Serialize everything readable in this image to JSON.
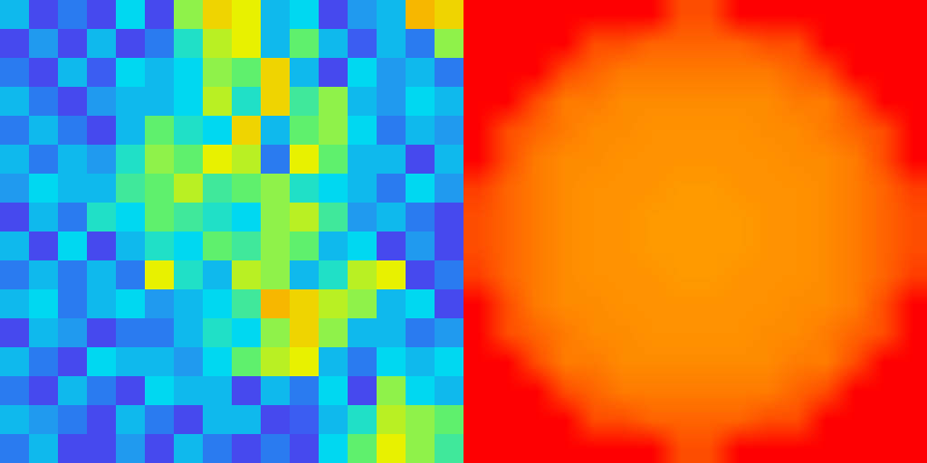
{
  "chart_data": [
    {
      "type": "heatmap",
      "tick_labels": false,
      "zlim": [
        0,
        1
      ],
      "z": [
        [
          0.3,
          0.1,
          0.2,
          0.1,
          0.35,
          0.1,
          0.55,
          0.7,
          0.65,
          0.3,
          0.35,
          0.1,
          0.25,
          0.3,
          0.75,
          0.7
        ],
        [
          0.1,
          0.25,
          0.1,
          0.3,
          0.1,
          0.2,
          0.4,
          0.6,
          0.65,
          0.3,
          0.5,
          0.3,
          0.15,
          0.3,
          0.2,
          0.55
        ],
        [
          0.2,
          0.1,
          0.3,
          0.15,
          0.35,
          0.3,
          0.35,
          0.55,
          0.5,
          0.7,
          0.3,
          0.1,
          0.35,
          0.25,
          0.3,
          0.2
        ],
        [
          0.3,
          0.2,
          0.1,
          0.25,
          0.3,
          0.3,
          0.35,
          0.6,
          0.4,
          0.7,
          0.45,
          0.55,
          0.3,
          0.25,
          0.35,
          0.3
        ],
        [
          0.2,
          0.3,
          0.2,
          0.1,
          0.3,
          0.5,
          0.4,
          0.35,
          0.7,
          0.3,
          0.5,
          0.55,
          0.35,
          0.2,
          0.3,
          0.25
        ],
        [
          0.3,
          0.2,
          0.3,
          0.25,
          0.4,
          0.55,
          0.5,
          0.65,
          0.6,
          0.2,
          0.65,
          0.5,
          0.3,
          0.3,
          0.1,
          0.3
        ],
        [
          0.25,
          0.35,
          0.3,
          0.3,
          0.45,
          0.5,
          0.6,
          0.45,
          0.5,
          0.55,
          0.4,
          0.35,
          0.3,
          0.2,
          0.35,
          0.25
        ],
        [
          0.1,
          0.3,
          0.2,
          0.4,
          0.35,
          0.5,
          0.45,
          0.4,
          0.35,
          0.55,
          0.6,
          0.45,
          0.25,
          0.3,
          0.2,
          0.1
        ],
        [
          0.3,
          0.1,
          0.35,
          0.1,
          0.3,
          0.4,
          0.35,
          0.5,
          0.45,
          0.55,
          0.5,
          0.3,
          0.35,
          0.1,
          0.25,
          0.1
        ],
        [
          0.2,
          0.3,
          0.2,
          0.3,
          0.2,
          0.65,
          0.4,
          0.3,
          0.6,
          0.55,
          0.3,
          0.4,
          0.6,
          0.65,
          0.1,
          0.2
        ],
        [
          0.3,
          0.35,
          0.2,
          0.3,
          0.35,
          0.25,
          0.3,
          0.35,
          0.45,
          0.75,
          0.7,
          0.6,
          0.55,
          0.3,
          0.35,
          0.1
        ],
        [
          0.1,
          0.3,
          0.25,
          0.1,
          0.2,
          0.2,
          0.3,
          0.4,
          0.35,
          0.55,
          0.7,
          0.55,
          0.3,
          0.3,
          0.2,
          0.25
        ],
        [
          0.3,
          0.2,
          0.1,
          0.35,
          0.3,
          0.3,
          0.25,
          0.35,
          0.5,
          0.6,
          0.65,
          0.3,
          0.2,
          0.35,
          0.3,
          0.35
        ],
        [
          0.2,
          0.1,
          0.3,
          0.2,
          0.1,
          0.35,
          0.3,
          0.3,
          0.1,
          0.3,
          0.2,
          0.35,
          0.1,
          0.55,
          0.35,
          0.3
        ],
        [
          0.3,
          0.25,
          0.2,
          0.1,
          0.3,
          0.2,
          0.1,
          0.3,
          0.3,
          0.1,
          0.15,
          0.3,
          0.4,
          0.6,
          0.55,
          0.5
        ],
        [
          0.2,
          0.3,
          0.1,
          0.1,
          0.25,
          0.1,
          0.3,
          0.2,
          0.1,
          0.2,
          0.1,
          0.35,
          0.5,
          0.65,
          0.55,
          0.45
        ]
      ]
    },
    {
      "type": "heatmap",
      "tick_labels": false,
      "zlim": [
        0,
        1
      ],
      "z": [
        [
          1,
          1,
          1,
          1,
          1,
          1,
          1,
          0.9,
          0.9,
          1,
          1,
          1,
          1,
          1,
          1,
          1
        ],
        [
          1,
          1,
          1,
          1,
          0.9,
          0.9,
          0.87,
          0.87,
          0.87,
          0.87,
          0.9,
          0.9,
          1,
          1,
          1,
          1
        ],
        [
          1,
          1,
          1,
          0.9,
          0.87,
          0.84,
          0.84,
          0.84,
          0.84,
          0.84,
          0.84,
          0.87,
          0.9,
          1,
          1,
          1
        ],
        [
          1,
          1,
          0.9,
          0.84,
          0.84,
          0.82,
          0.82,
          0.82,
          0.82,
          0.82,
          0.82,
          0.84,
          0.84,
          0.9,
          1,
          1
        ],
        [
          1,
          0.9,
          0.87,
          0.84,
          0.82,
          0.82,
          0.81,
          0.81,
          0.81,
          0.81,
          0.82,
          0.82,
          0.84,
          0.87,
          0.9,
          1
        ],
        [
          1,
          0.9,
          0.84,
          0.82,
          0.82,
          0.81,
          0.81,
          0.81,
          0.81,
          0.81,
          0.81,
          0.82,
          0.82,
          0.84,
          0.9,
          1
        ],
        [
          0.92,
          0.87,
          0.84,
          0.82,
          0.81,
          0.81,
          0.81,
          0.8,
          0.8,
          0.81,
          0.81,
          0.81,
          0.82,
          0.84,
          0.87,
          0.92
        ],
        [
          0.9,
          0.87,
          0.84,
          0.82,
          0.81,
          0.81,
          0.8,
          0.8,
          0.8,
          0.8,
          0.81,
          0.81,
          0.82,
          0.84,
          0.87,
          0.9
        ],
        [
          0.9,
          0.87,
          0.84,
          0.82,
          0.81,
          0.81,
          0.8,
          0.8,
          0.8,
          0.8,
          0.81,
          0.81,
          0.82,
          0.84,
          0.87,
          0.9
        ],
        [
          0.92,
          0.87,
          0.84,
          0.82,
          0.81,
          0.81,
          0.81,
          0.8,
          0.8,
          0.81,
          0.81,
          0.81,
          0.82,
          0.84,
          0.87,
          0.92
        ],
        [
          1,
          0.9,
          0.84,
          0.82,
          0.82,
          0.81,
          0.81,
          0.81,
          0.81,
          0.81,
          0.81,
          0.82,
          0.82,
          0.84,
          0.9,
          1
        ],
        [
          1,
          0.9,
          0.87,
          0.84,
          0.82,
          0.82,
          0.81,
          0.81,
          0.81,
          0.81,
          0.82,
          0.82,
          0.84,
          0.87,
          0.9,
          1
        ],
        [
          1,
          1,
          0.9,
          0.84,
          0.84,
          0.82,
          0.82,
          0.82,
          0.82,
          0.82,
          0.82,
          0.84,
          0.84,
          0.9,
          1,
          1
        ],
        [
          1,
          1,
          1,
          0.9,
          0.87,
          0.84,
          0.84,
          0.84,
          0.84,
          0.84,
          0.84,
          0.87,
          0.9,
          1,
          1,
          1
        ],
        [
          1,
          1,
          1,
          1,
          0.9,
          0.9,
          0.87,
          0.87,
          0.87,
          0.87,
          0.9,
          0.9,
          1,
          1,
          1,
          1
        ],
        [
          1,
          1,
          1,
          1,
          1,
          1,
          1,
          0.9,
          0.9,
          1,
          1,
          1,
          1,
          1,
          1,
          1
        ]
      ]
    }
  ]
}
